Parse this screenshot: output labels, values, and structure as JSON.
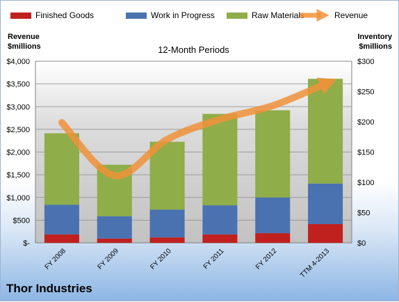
{
  "footer": {
    "company": "Thor Industries"
  },
  "chart_data": {
    "type": "bar",
    "title": "12-Month Periods",
    "left_axis_label": [
      "Revenue",
      "$millions"
    ],
    "right_axis_label": [
      "Inventory",
      "$millions"
    ],
    "categories": [
      "FY 2008",
      "FY 2009",
      "FY 2010",
      "FY 2011",
      "FY 2012",
      "TTM 4-2013"
    ],
    "series": [
      {
        "name": "Finished Goods",
        "type": "stacked-bar",
        "axis": "right",
        "color": "#c0201e",
        "values": [
          14,
          7,
          9,
          14,
          16,
          31
        ]
      },
      {
        "name": "Work in Progress",
        "type": "stacked-bar",
        "axis": "right",
        "color": "#4a72b0",
        "values": [
          49,
          37,
          46,
          48,
          59,
          67
        ]
      },
      {
        "name": "Raw Materials",
        "type": "stacked-bar",
        "axis": "right",
        "color": "#8fad48",
        "values": [
          118,
          85,
          112,
          151,
          144,
          173
        ]
      },
      {
        "name": "Revenue",
        "type": "line",
        "axis": "left",
        "color": "#f0923a",
        "values": [
          2650,
          1480,
          2280,
          2720,
          3020,
          3500
        ]
      }
    ],
    "left_ticks": [
      "$-",
      "$500",
      "$1,000",
      "$1,500",
      "$2,000",
      "$2,500",
      "$3,000",
      "$3,500",
      "$4,000"
    ],
    "right_ticks": [
      "$0",
      "$50",
      "$100",
      "$150",
      "$200",
      "$250",
      "$300"
    ],
    "ylim_left": [
      0,
      4000
    ],
    "ylim_right": [
      0,
      300
    ],
    "legend_position": "top",
    "grid": true
  }
}
